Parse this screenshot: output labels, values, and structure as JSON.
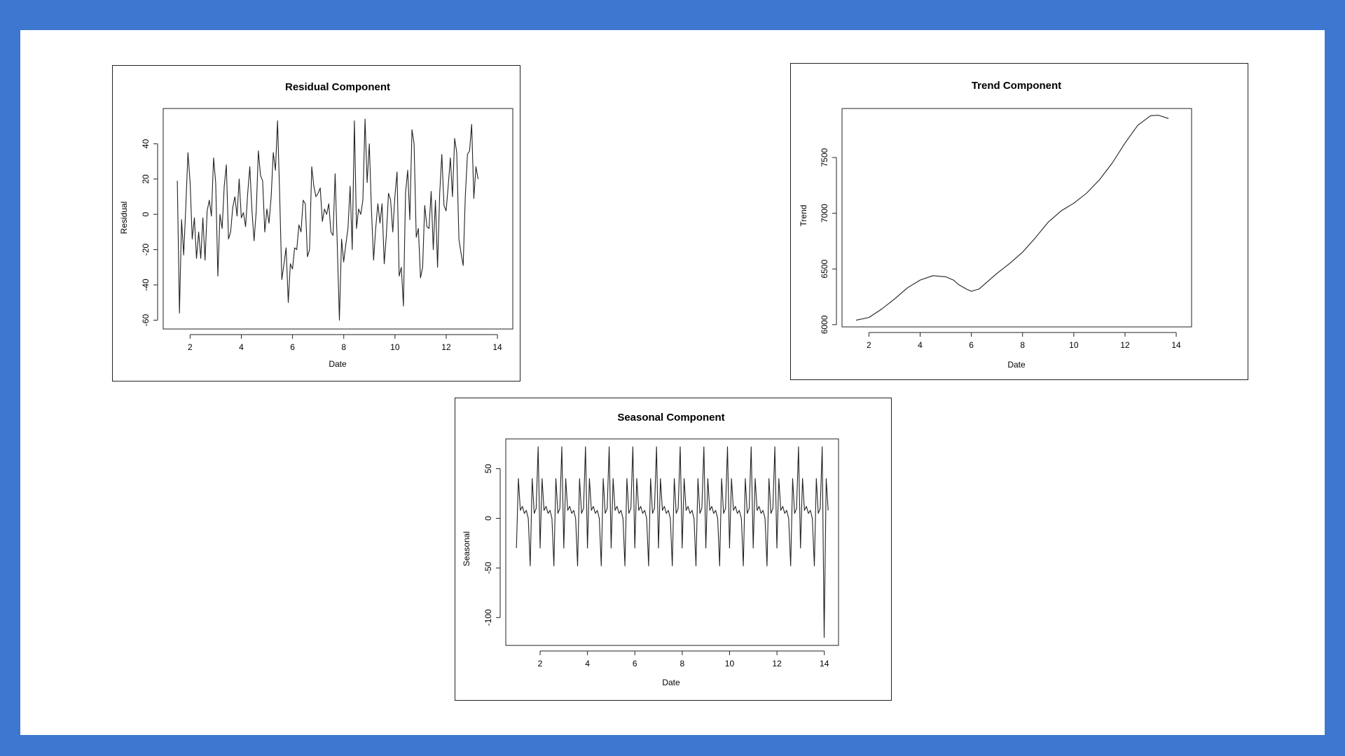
{
  "colors": {
    "background": "#3d77cf",
    "panel": "#ffffff",
    "line": "#222222"
  },
  "chart_data": [
    {
      "id": "residual",
      "type": "line",
      "title": "Residual Component",
      "xlabel": "Date",
      "ylabel": "Residual",
      "xlim": [
        0.95,
        14.6
      ],
      "ylim": [
        -65,
        60
      ],
      "xticks": [
        2,
        4,
        6,
        8,
        10,
        12,
        14
      ],
      "yticks": [
        -60,
        -40,
        -20,
        0,
        20,
        40
      ],
      "x_start": 1.5,
      "x_step": 0.0833,
      "values": [
        19,
        -56,
        -3,
        -23,
        5,
        35,
        18,
        -14,
        -2,
        -25,
        -10,
        -25,
        -2,
        -26,
        2,
        8,
        -1,
        32,
        18,
        -35,
        0,
        -8,
        16,
        28,
        -14,
        -10,
        4,
        10,
        -1,
        20,
        -2,
        1,
        -7,
        12,
        27,
        2,
        -15,
        2,
        36,
        22,
        19,
        -10,
        3,
        -5,
        10,
        35,
        25,
        53,
        10,
        -37,
        -28,
        -19,
        -50,
        -28,
        -31,
        -19,
        -20,
        -6,
        -10,
        8,
        6,
        -24,
        -20,
        27,
        16,
        10,
        12,
        15,
        -4,
        3,
        0,
        6,
        -10,
        -12,
        23,
        -18,
        -60,
        -14,
        -27,
        -17,
        -8,
        16,
        -20,
        53,
        -8,
        3,
        0,
        8,
        54,
        18,
        40,
        3,
        -26,
        -8,
        6,
        -5,
        6,
        -28,
        -12,
        12,
        8,
        -10,
        10,
        24,
        -35,
        -30,
        -52,
        12,
        25,
        -3,
        48,
        40,
        -13,
        -8,
        -36,
        -30,
        5,
        -7,
        -8,
        13,
        -20,
        8,
        -30,
        12,
        34,
        5,
        2,
        16,
        32,
        10,
        43,
        35,
        -14,
        -22,
        -29,
        10,
        34,
        36,
        51,
        9,
        27,
        20
      ]
    },
    {
      "id": "trend",
      "type": "line",
      "title": "Trend Component",
      "xlabel": "Date",
      "ylabel": "Trend",
      "xlim": [
        0.95,
        14.6
      ],
      "ylim": [
        5980,
        7940
      ],
      "xticks": [
        2,
        4,
        6,
        8,
        10,
        12,
        14
      ],
      "yticks": [
        6000,
        6500,
        7000,
        7500
      ],
      "x": [
        1.5,
        2,
        2.5,
        3,
        3.5,
        4,
        4.5,
        5,
        5.3,
        5.5,
        5.8,
        6,
        6.3,
        6.6,
        7,
        7.5,
        8,
        8.5,
        9,
        9.5,
        10,
        10.5,
        11,
        11.5,
        12,
        12.5,
        13,
        13.3,
        13.7
      ],
      "values": [
        6040,
        6065,
        6140,
        6230,
        6330,
        6400,
        6440,
        6430,
        6400,
        6360,
        6320,
        6300,
        6320,
        6380,
        6460,
        6550,
        6650,
        6780,
        6920,
        7020,
        7090,
        7180,
        7300,
        7450,
        7630,
        7790,
        7875,
        7880,
        7850
      ]
    },
    {
      "id": "seasonal",
      "type": "line",
      "title": "Seasonal Component",
      "xlabel": "Date",
      "ylabel": "Seasonal",
      "xlim": [
        0.55,
        14.6
      ],
      "ylim": [
        -128,
        80
      ],
      "xticks": [
        2,
        4,
        6,
        8,
        10,
        12,
        14
      ],
      "yticks": [
        -100,
        -50,
        0,
        50
      ],
      "x_start": 1.0,
      "x_step": 0.0833,
      "period": [
        -30,
        40,
        8,
        12,
        5,
        8,
        0,
        -48,
        40,
        5,
        10,
        72
      ],
      "cycles": 13,
      "extra": [
        -120,
        40,
        8
      ]
    }
  ]
}
